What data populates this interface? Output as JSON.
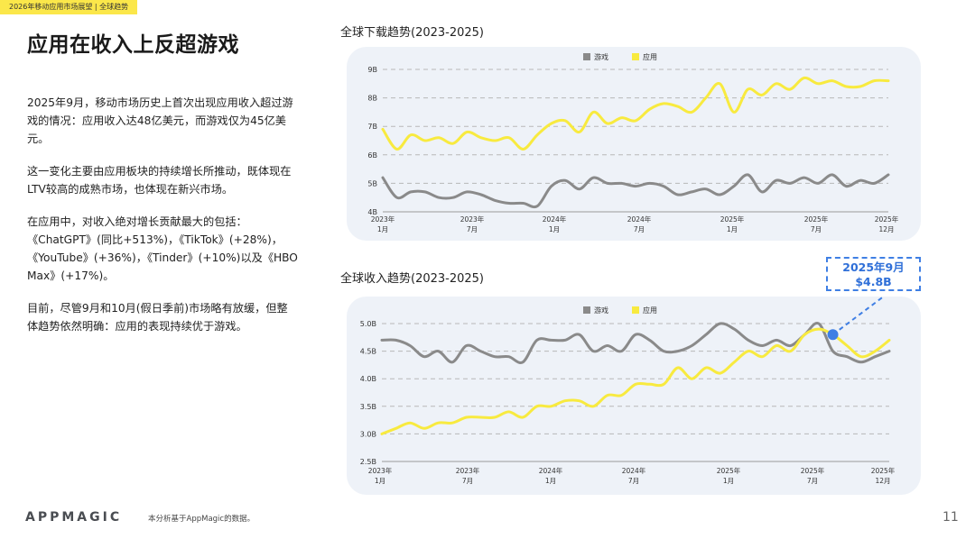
{
  "header": {
    "tag": "2026年移动应用市场展望 | 全球趋势",
    "title": "应用在收入上反超游戏"
  },
  "body": {
    "paragraphs": [
      "2025年9月，移动市场历史上首次出现应用收入超过游戏的情况：应用收入达48亿美元，而游戏仅为45亿美元。",
      "这一变化主要由应用板块的持续增长所推动，既体现在LTV较高的成熟市场，也体现在新兴市场。",
      "在应用中，对收入绝对增长贡献最大的包括：《ChatGPT》(同比+513%)，《TikTok》(+28%)，《YouTube》(+36%)，《Tinder》(+10%)以及《HBO Max》(+17%)。",
      "目前，尽管9月和10月(假日季前)市场略有放缓，但整体趋势依然明确：应用的表现持续优于游戏。"
    ]
  },
  "chart_data": [
    {
      "type": "line",
      "title": "全球下载趋势(2023-2025)",
      "legend": [
        "游戏",
        "应用"
      ],
      "legend_position": "top-center",
      "x_tick_labels": [
        [
          "2023年",
          "1月"
        ],
        [
          "2023年",
          "7月"
        ],
        [
          "2024年",
          "1月"
        ],
        [
          "2024年",
          "7月"
        ],
        [
          "2025年",
          "1月"
        ],
        [
          "2025年",
          "7月"
        ],
        [
          "2025年",
          "12月"
        ]
      ],
      "ylim": [
        4,
        9
      ],
      "y_ticks": [
        "4B",
        "5B",
        "6B",
        "7B",
        "8B",
        "9B"
      ],
      "colors": {
        "游戏": "#8a8a8a",
        "应用": "#f8ea3f"
      },
      "series": [
        {
          "name": "游戏",
          "values": [
            5.2,
            4.5,
            4.7,
            4.7,
            4.5,
            4.5,
            4.7,
            4.6,
            4.4,
            4.3,
            4.3,
            4.2,
            4.9,
            5.1,
            4.8,
            5.2,
            5.0,
            5.0,
            4.9,
            5.0,
            4.9,
            4.6,
            4.7,
            4.8,
            4.6,
            4.9,
            5.3,
            4.7,
            5.1,
            5.0,
            5.2,
            5.0,
            5.3,
            4.9,
            5.1,
            5.0,
            5.3
          ]
        },
        {
          "name": "应用",
          "values": [
            6.9,
            6.2,
            6.7,
            6.5,
            6.6,
            6.4,
            6.8,
            6.6,
            6.5,
            6.6,
            6.2,
            6.7,
            7.1,
            7.2,
            6.8,
            7.5,
            7.1,
            7.3,
            7.2,
            7.6,
            7.8,
            7.7,
            7.5,
            8.0,
            8.5,
            7.5,
            8.3,
            8.1,
            8.5,
            8.3,
            8.7,
            8.5,
            8.6,
            8.4,
            8.4,
            8.6,
            8.6
          ]
        }
      ]
    },
    {
      "type": "line",
      "title": "全球收入趋势(2023-2025)",
      "legend": [
        "游戏",
        "应用"
      ],
      "legend_position": "top-center",
      "x_tick_labels": [
        [
          "2023年",
          "1月"
        ],
        [
          "2023年",
          "7月"
        ],
        [
          "2024年",
          "1月"
        ],
        [
          "2024年",
          "7月"
        ],
        [
          "2025年",
          "1月"
        ],
        [
          "2025年",
          "7月"
        ],
        [
          "2025年",
          "12月"
        ]
      ],
      "ylim": [
        2.5,
        5.0
      ],
      "y_ticks": [
        "2.5B",
        "3.0B",
        "3.5B",
        "4.0B",
        "4.5B",
        "5.0B"
      ],
      "colors": {
        "游戏": "#8a8a8a",
        "应用": "#f8ea3f"
      },
      "annotation": {
        "label_line1": "2025年9月",
        "label_line2": "$4.8B",
        "point_index": 32,
        "point_value": 4.8,
        "marker_color": "#3f7fe4"
      },
      "series": [
        {
          "name": "游戏",
          "values": [
            4.7,
            4.7,
            4.6,
            4.4,
            4.5,
            4.3,
            4.6,
            4.5,
            4.4,
            4.4,
            4.3,
            4.7,
            4.7,
            4.7,
            4.8,
            4.5,
            4.6,
            4.5,
            4.8,
            4.7,
            4.5,
            4.5,
            4.6,
            4.8,
            5.0,
            4.9,
            4.7,
            4.6,
            4.7,
            4.6,
            4.8,
            5.0,
            4.5,
            4.4,
            4.3,
            4.4,
            4.5
          ]
        },
        {
          "name": "应用",
          "values": [
            3.0,
            3.1,
            3.2,
            3.1,
            3.2,
            3.2,
            3.3,
            3.3,
            3.3,
            3.4,
            3.3,
            3.5,
            3.5,
            3.6,
            3.6,
            3.5,
            3.7,
            3.7,
            3.9,
            3.9,
            3.9,
            4.2,
            4.0,
            4.2,
            4.1,
            4.3,
            4.5,
            4.4,
            4.6,
            4.5,
            4.8,
            4.9,
            4.8,
            4.6,
            4.4,
            4.5,
            4.7
          ]
        }
      ]
    }
  ],
  "callout": {
    "line1": "2025年9月",
    "line2": "$4.8B"
  },
  "footer": {
    "logo": "APPMAGIC",
    "note": "本分析基于AppMagic的数据。",
    "page_number": "11"
  }
}
